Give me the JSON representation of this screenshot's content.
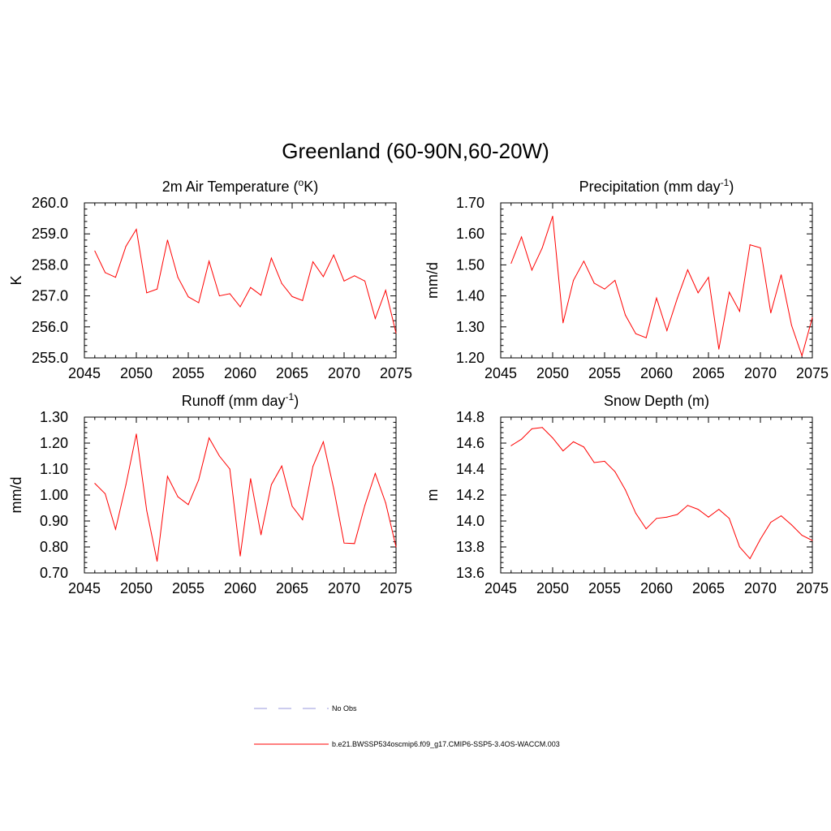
{
  "title": "Greenland (60-90N,60-20W)",
  "legend": [
    {
      "label": "No Obs",
      "color": "#9999dd",
      "style": "dashed"
    },
    {
      "label": "b.e21.BWSSP534oscmip6.f09_g17.CMIP6-SSP5-3.4OS-WACCM.003",
      "color": "#ff0000",
      "style": "solid"
    }
  ],
  "chart_data": [
    {
      "type": "line",
      "title": "2m Air Temperature (",
      "title_sup": "o",
      "title_post": "K)",
      "ylabel": "K",
      "xlabel": "",
      "xlim": [
        2045,
        2075
      ],
      "ylim": [
        255.0,
        260.0
      ],
      "xticks": [
        2045,
        2050,
        2055,
        2060,
        2065,
        2070,
        2075
      ],
      "yticks": [
        255.0,
        256.0,
        257.0,
        258.0,
        259.0,
        260.0
      ],
      "ytick_decimals": 1,
      "series": [
        {
          "name": "b.e21.BWSSP534oscmip6.f09_g17.CMIP6-SSP5-3.4OS-WACCM.003",
          "color": "#ff0000",
          "x": [
            2046,
            2047,
            2048,
            2049,
            2050,
            2051,
            2052,
            2053,
            2054,
            2055,
            2056,
            2057,
            2058,
            2059,
            2060,
            2061,
            2062,
            2063,
            2064,
            2065,
            2066,
            2067,
            2068,
            2069,
            2070,
            2071,
            2072,
            2073,
            2074,
            2075
          ],
          "values": [
            258.45,
            257.75,
            257.6,
            258.6,
            259.15,
            257.1,
            257.22,
            258.8,
            257.6,
            256.97,
            256.78,
            258.12,
            257.0,
            257.07,
            256.65,
            257.27,
            257.02,
            258.22,
            257.4,
            256.98,
            256.85,
            258.1,
            257.62,
            258.32,
            257.48,
            257.65,
            257.48,
            256.27,
            257.18,
            255.8
          ]
        }
      ]
    },
    {
      "type": "line",
      "title": "Precipitation (mm day",
      "title_sup": "-1",
      "title_post": ")",
      "ylabel": "mm/d",
      "xlabel": "",
      "xlim": [
        2045,
        2075
      ],
      "ylim": [
        1.2,
        1.7
      ],
      "xticks": [
        2045,
        2050,
        2055,
        2060,
        2065,
        2070,
        2075
      ],
      "yticks": [
        1.2,
        1.3,
        1.4,
        1.5,
        1.6,
        1.7
      ],
      "ytick_decimals": 2,
      "series": [
        {
          "name": "b.e21.BWSSP534oscmip6.f09_g17.CMIP6-SSP5-3.4OS-WACCM.003",
          "color": "#ff0000",
          "x": [
            2046,
            2047,
            2048,
            2049,
            2050,
            2051,
            2052,
            2053,
            2054,
            2055,
            2056,
            2057,
            2058,
            2059,
            2060,
            2061,
            2062,
            2063,
            2064,
            2065,
            2066,
            2067,
            2068,
            2069,
            2070,
            2071,
            2072,
            2073,
            2074,
            2075
          ],
          "values": [
            1.505,
            1.59,
            1.483,
            1.555,
            1.657,
            1.313,
            1.45,
            1.512,
            1.441,
            1.422,
            1.45,
            1.338,
            1.278,
            1.265,
            1.393,
            1.288,
            1.392,
            1.484,
            1.41,
            1.46,
            1.228,
            1.412,
            1.35,
            1.565,
            1.555,
            1.345,
            1.468,
            1.305,
            1.207,
            1.33
          ]
        }
      ]
    },
    {
      "type": "line",
      "title": "Runoff (mm day",
      "title_sup": "-1",
      "title_post": ")",
      "ylabel": "mm/d",
      "xlabel": "",
      "xlim": [
        2045,
        2075
      ],
      "ylim": [
        0.7,
        1.3
      ],
      "xticks": [
        2045,
        2050,
        2055,
        2060,
        2065,
        2070,
        2075
      ],
      "yticks": [
        0.7,
        0.8,
        0.9,
        1.0,
        1.1,
        1.2,
        1.3
      ],
      "ytick_decimals": 2,
      "series": [
        {
          "name": "b.e21.BWSSP534oscmip6.f09_g17.CMIP6-SSP5-3.4OS-WACCM.003",
          "color": "#ff0000",
          "x": [
            2046,
            2047,
            2048,
            2049,
            2050,
            2051,
            2052,
            2053,
            2054,
            2055,
            2056,
            2057,
            2058,
            2059,
            2060,
            2061,
            2062,
            2063,
            2064,
            2065,
            2066,
            2067,
            2068,
            2069,
            2070,
            2071,
            2072,
            2073,
            2074,
            2075
          ],
          "values": [
            1.045,
            1.005,
            0.868,
            1.04,
            1.235,
            0.94,
            0.745,
            1.072,
            0.993,
            0.963,
            1.058,
            1.22,
            1.15,
            1.1,
            0.765,
            1.063,
            0.847,
            1.04,
            1.112,
            0.957,
            0.905,
            1.11,
            1.205,
            1.025,
            0.815,
            0.813,
            0.96,
            1.083,
            0.97,
            0.8
          ]
        }
      ]
    },
    {
      "type": "line",
      "title": "Snow Depth (m)",
      "title_sup": "",
      "title_post": "",
      "ylabel": "m",
      "xlabel": "",
      "xlim": [
        2045,
        2075
      ],
      "ylim": [
        13.6,
        14.8
      ],
      "xticks": [
        2045,
        2050,
        2055,
        2060,
        2065,
        2070,
        2075
      ],
      "yticks": [
        13.6,
        13.8,
        14.0,
        14.2,
        14.4,
        14.6,
        14.8
      ],
      "ytick_decimals": 1,
      "series": [
        {
          "name": "b.e21.BWSSP534oscmip6.f09_g17.CMIP6-SSP5-3.4OS-WACCM.003",
          "color": "#ff0000",
          "x": [
            2046,
            2047,
            2048,
            2049,
            2050,
            2051,
            2052,
            2053,
            2054,
            2055,
            2056,
            2057,
            2058,
            2059,
            2060,
            2061,
            2062,
            2063,
            2064,
            2065,
            2066,
            2067,
            2068,
            2069,
            2070,
            2071,
            2072,
            2073,
            2074,
            2075
          ],
          "values": [
            14.58,
            14.63,
            14.71,
            14.72,
            14.64,
            14.54,
            14.61,
            14.57,
            14.45,
            14.46,
            14.38,
            14.24,
            14.06,
            13.94,
            14.02,
            14.03,
            14.05,
            14.12,
            14.09,
            14.03,
            14.09,
            14.02,
            13.8,
            13.71,
            13.86,
            13.99,
            14.04,
            13.97,
            13.89,
            13.85
          ]
        }
      ]
    }
  ]
}
